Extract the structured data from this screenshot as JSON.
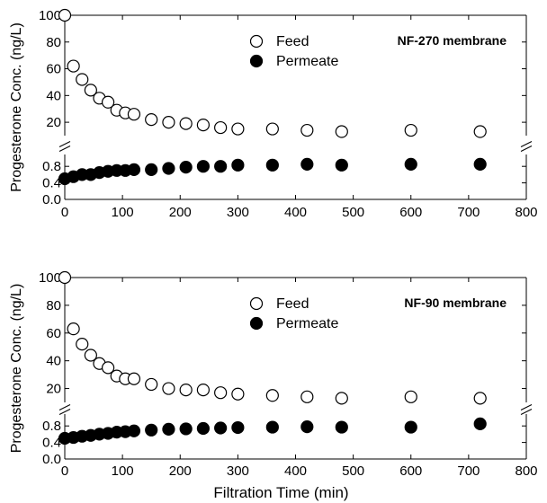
{
  "chart_data": [
    {
      "type": "scatter",
      "title": "NF-270 membrane",
      "xlabel": "",
      "ylabel": "Progesterone Conc. (ng/L)",
      "xlim": [
        0,
        800
      ],
      "x_ticks": [
        "0",
        "100",
        "200",
        "300",
        "400",
        "500",
        "600",
        "700",
        "800"
      ],
      "y_upper_ticks": [
        "20",
        "40",
        "60",
        "80",
        "100"
      ],
      "y_lower_ticks": [
        "0.0",
        "0.4",
        "0.8"
      ],
      "ylim_upper": [
        10,
        100
      ],
      "ylim_lower": [
        0,
        1.0
      ],
      "axis_break": true,
      "legend_position": "top-center",
      "series": [
        {
          "name": "Feed",
          "marker": "open-circle",
          "x": [
            0,
            15,
            30,
            45,
            60,
            75,
            90,
            105,
            120,
            150,
            180,
            210,
            240,
            270,
            300,
            360,
            420,
            480,
            600,
            720
          ],
          "y": [
            100,
            62,
            52,
            44,
            38,
            35,
            29,
            27,
            26,
            22,
            20,
            19,
            18,
            16,
            15,
            15,
            14,
            13,
            14,
            13
          ]
        },
        {
          "name": "Permeate",
          "marker": "filled-circle",
          "x": [
            0,
            15,
            30,
            45,
            60,
            75,
            90,
            105,
            120,
            150,
            180,
            210,
            240,
            270,
            300,
            360,
            420,
            480,
            600,
            720
          ],
          "y": [
            0.5,
            0.55,
            0.6,
            0.6,
            0.65,
            0.68,
            0.7,
            0.7,
            0.72,
            0.72,
            0.75,
            0.78,
            0.8,
            0.8,
            0.83,
            0.83,
            0.85,
            0.83,
            0.85,
            0.85
          ]
        }
      ]
    },
    {
      "type": "scatter",
      "title": "NF-90 membrane",
      "xlabel": "Filtration Time (min)",
      "ylabel": "Progesterone Conc. (ng/L)",
      "xlim": [
        0,
        800
      ],
      "x_ticks": [
        "0",
        "100",
        "200",
        "300",
        "400",
        "500",
        "600",
        "700",
        "800"
      ],
      "y_upper_ticks": [
        "20",
        "40",
        "60",
        "80",
        "100"
      ],
      "y_lower_ticks": [
        "0.0",
        "0.4",
        "0.8"
      ],
      "ylim_upper": [
        10,
        100
      ],
      "ylim_lower": [
        0,
        1.0
      ],
      "axis_break": true,
      "legend_position": "top-center",
      "series": [
        {
          "name": "Feed",
          "marker": "open-circle",
          "x": [
            0,
            15,
            30,
            45,
            60,
            75,
            90,
            105,
            120,
            150,
            180,
            210,
            240,
            270,
            300,
            360,
            420,
            480,
            600,
            720
          ],
          "y": [
            100,
            63,
            52,
            44,
            38,
            35,
            29,
            27,
            27,
            23,
            20,
            19,
            19,
            17,
            16,
            15,
            14,
            13,
            14,
            13
          ]
        },
        {
          "name": "Permeate",
          "marker": "filled-circle",
          "x": [
            0,
            15,
            30,
            45,
            60,
            75,
            90,
            105,
            120,
            150,
            180,
            210,
            240,
            270,
            300,
            360,
            420,
            480,
            600,
            720
          ],
          "y": [
            0.5,
            0.52,
            0.55,
            0.57,
            0.6,
            0.62,
            0.65,
            0.66,
            0.68,
            0.7,
            0.72,
            0.73,
            0.74,
            0.75,
            0.76,
            0.77,
            0.78,
            0.77,
            0.77,
            0.85
          ]
        }
      ]
    }
  ]
}
